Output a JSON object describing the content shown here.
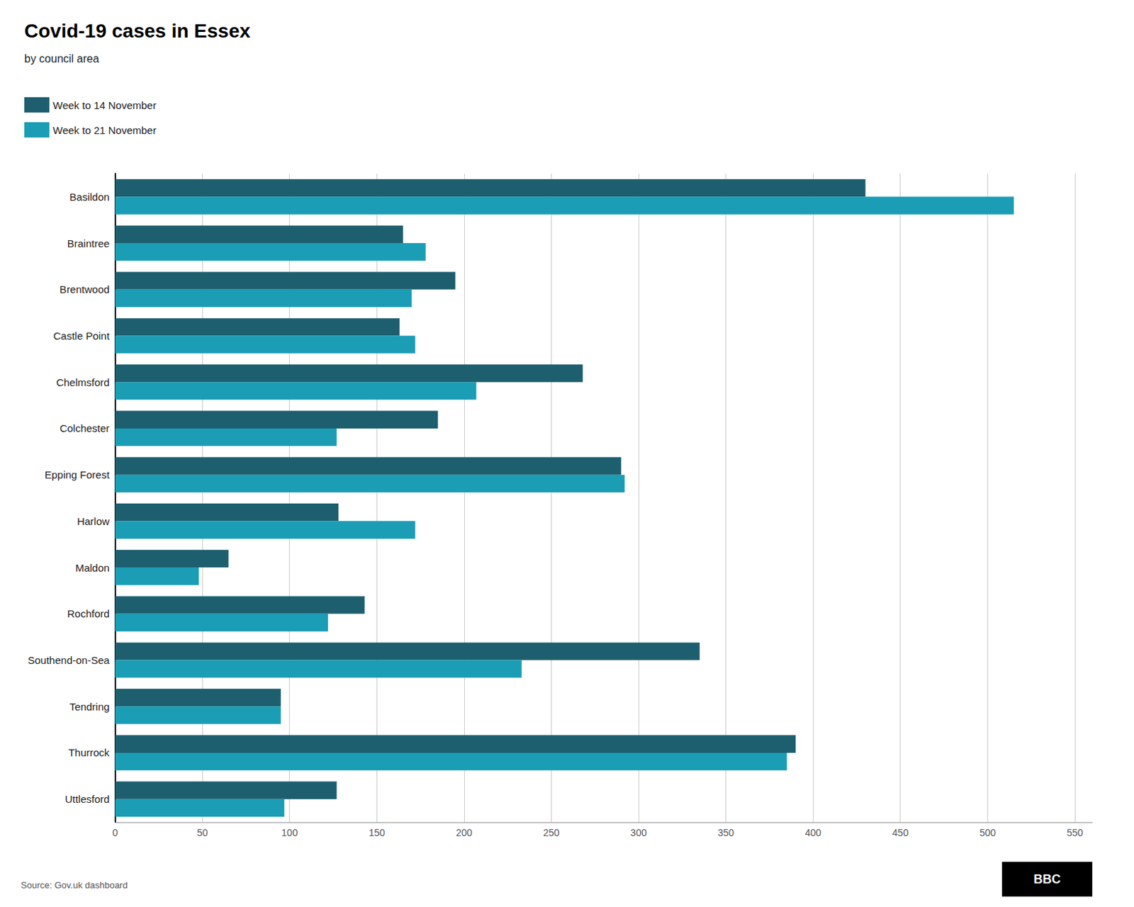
{
  "chart_data": {
    "type": "bar",
    "orientation": "horizontal",
    "title": "Covid-19 cases in Essex",
    "subtitle": "by council area",
    "source": "Source: Gov.uk dashboard",
    "annotations": [
      "BBC"
    ],
    "categories": [
      "Basildon",
      "Braintree",
      "Brentwood",
      "Castle Point",
      "Chelmsford",
      "Colchester",
      "Epping Forest",
      "Harlow",
      "Maldon",
      "Rochford",
      "Southend-on-Sea",
      "Tendring",
      "Thurrock",
      "Uttlesford"
    ],
    "series": [
      {
        "name": "Week to 14 November",
        "color": "#1d5f6e",
        "values": [
          430,
          165,
          195,
          163,
          268,
          185,
          290,
          128,
          65,
          143,
          335,
          95,
          390,
          127
        ]
      },
      {
        "name": "Week to 21 November",
        "color": "#1a9db5",
        "values": [
          515,
          178,
          170,
          172,
          207,
          127,
          292,
          172,
          48,
          122,
          233,
          95,
          385,
          97
        ]
      }
    ],
    "xlim": [
      0,
      560
    ],
    "xticks": [
      0,
      50,
      100,
      150,
      200,
      250,
      300,
      350,
      400,
      450,
      500,
      550
    ],
    "grid": true,
    "legend": "upper left"
  }
}
